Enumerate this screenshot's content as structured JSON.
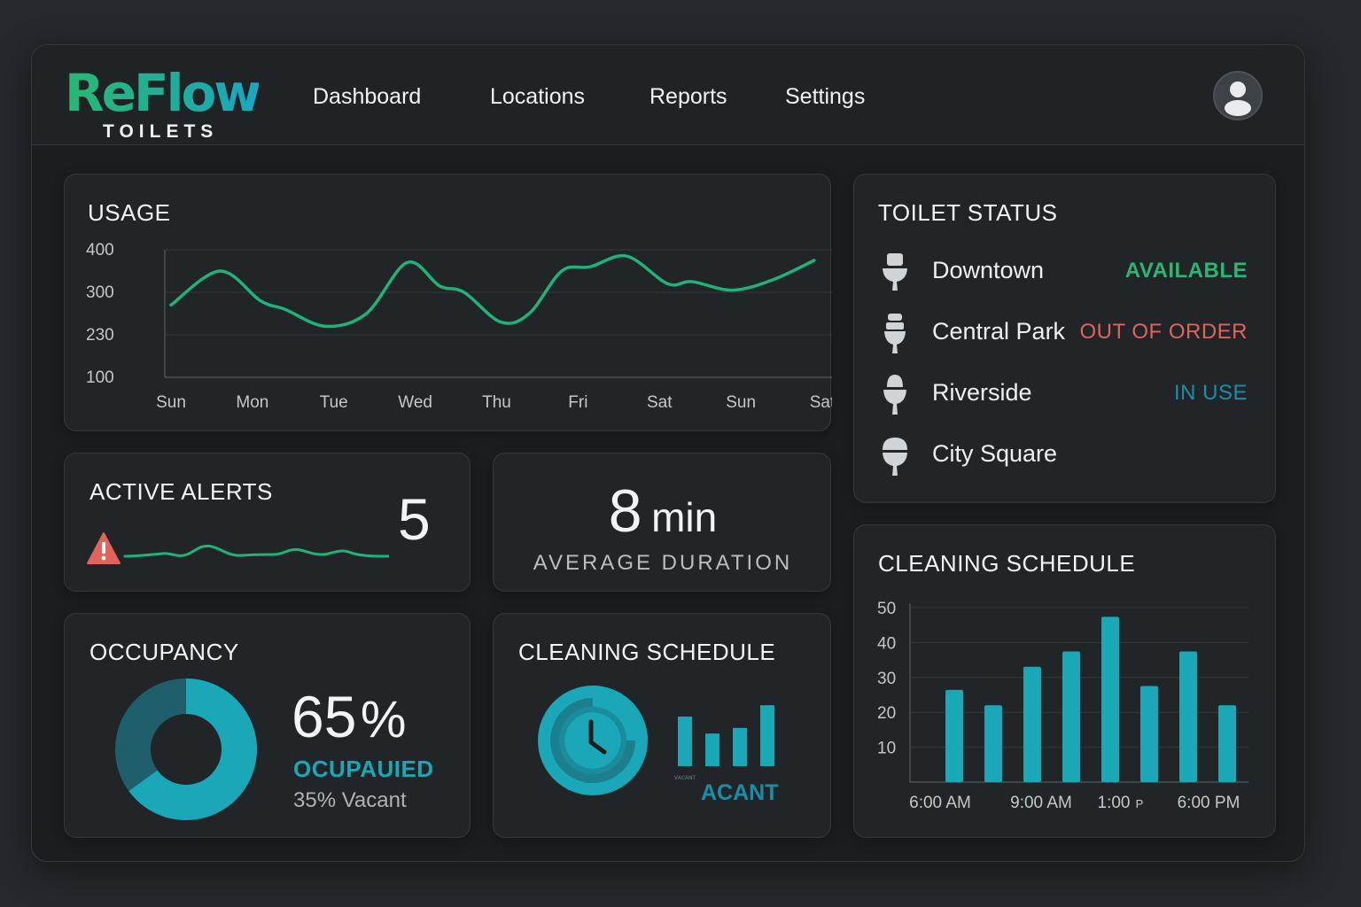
{
  "brand": {
    "name": "ReFlow",
    "sub": "TOILETS"
  },
  "nav": [
    "Dashboard",
    "Locations",
    "Reports",
    "Settings"
  ],
  "usage": {
    "title": "USAGE",
    "chart_data": {
      "type": "line",
      "categories": [
        "Sun",
        "Mon",
        "Tue",
        "Wed",
        "Thu",
        "Fri",
        "Sat",
        "Sun",
        "Sat"
      ],
      "y_tick_labels": [
        "400",
        "300",
        "230",
        "100"
      ],
      "series": [
        {
          "points": [
            [
              0.0,
              1.7
            ],
            [
              0.6,
              2.5
            ],
            [
              1.1,
              1.8
            ],
            [
              1.4,
              1.6
            ],
            [
              1.9,
              1.2
            ],
            [
              2.4,
              1.5
            ],
            [
              2.9,
              2.7
            ],
            [
              3.3,
              2.15
            ],
            [
              3.6,
              2.0
            ],
            [
              4.05,
              1.3
            ],
            [
              4.4,
              1.5
            ],
            [
              4.8,
              2.5
            ],
            [
              5.15,
              2.6
            ],
            [
              5.6,
              2.85
            ],
            [
              6.1,
              2.2
            ],
            [
              6.4,
              2.25
            ],
            [
              6.9,
              2.05
            ],
            [
              7.4,
              2.3
            ],
            [
              7.9,
              2.75
            ]
          ]
        }
      ],
      "color": "#1fb37a",
      "grid": true
    }
  },
  "status": {
    "title": "TOILET STATUS",
    "items": [
      {
        "name": "Downtown",
        "status": "AVAILABLE",
        "color": "#2bb673"
      },
      {
        "name": "Central Park",
        "status": "OUT OF ORDER",
        "color": "#e0645a"
      },
      {
        "name": "Riverside",
        "status": "IN USE",
        "color": "#1a8ea8"
      },
      {
        "name": "City Square",
        "status": "",
        "color": "#2bb673"
      }
    ]
  },
  "alerts": {
    "title": "ACTIVE ALERTS",
    "count": "5"
  },
  "duration": {
    "value": "8",
    "unit": "min",
    "label": "AVERAGE DURATION"
  },
  "occupancy": {
    "title": "OCCUPANCY",
    "percent_value": "65",
    "percent_sign": "%",
    "occupied_label": "OCUPAUIED",
    "vacant_label": "35% Vacant",
    "chart_data": {
      "type": "pie",
      "slices": [
        {
          "value": 65,
          "color": "#1aa7b8"
        },
        {
          "value": 35,
          "color": "#1f5f6b"
        }
      ]
    }
  },
  "cleaning_small": {
    "title": "CLEANING SCHEDULE",
    "tiny_label": "ᴠᴀᴄᴀɴᴛ",
    "label": "ACANT",
    "chart_data": {
      "type": "bar",
      "values": [
        3.5,
        2.3,
        2.7,
        4.3
      ],
      "color": "#1aa7b8"
    }
  },
  "cleaning_large": {
    "title": "CLEANING SCHEDULE",
    "chart_data": {
      "type": "bar",
      "y_ticks": [
        10,
        20,
        30,
        40,
        50
      ],
      "ylim": [
        0,
        50
      ],
      "x_tick_labels": [
        "6:00 AM",
        "9:00 AM",
        "1:00",
        "P",
        "6:00 PM"
      ],
      "values": [
        24,
        20,
        30,
        34,
        43,
        25,
        34,
        20
      ],
      "color": "#1aa7b8",
      "grid": true
    }
  }
}
